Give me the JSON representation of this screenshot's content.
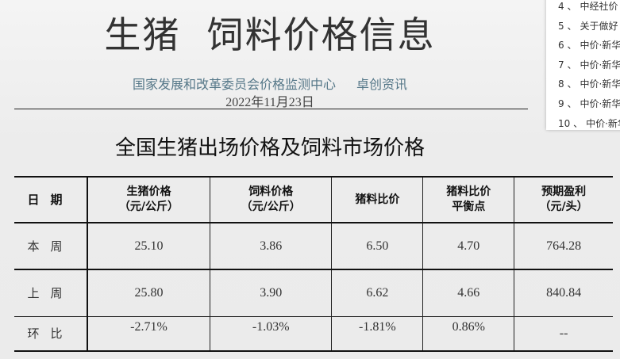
{
  "header": {
    "title": "生猪  饲料价格信息",
    "source1": "国家发展和改革委员会价格监测中心",
    "source2": "卓创资讯",
    "date": "2022年11月23日"
  },
  "heading": "全国生猪出场价格及饲料市场价格",
  "table": {
    "headers": [
      [
        "日期",
        ""
      ],
      [
        "生猪价格",
        "（元/公斤）"
      ],
      [
        "饲料价格",
        "（元/公斤）"
      ],
      [
        "猪料比价",
        ""
      ],
      [
        "猪料比价",
        "平衡点"
      ],
      [
        "预期盈利",
        "（元/头）"
      ]
    ],
    "rows": [
      [
        "本周",
        "25.10",
        "3.86",
        "6.50",
        "4.70",
        "764.28"
      ],
      [
        "上周",
        "25.80",
        "3.90",
        "6.62",
        "4.66",
        "840.84"
      ],
      [
        "环比",
        "-2.71%",
        "-1.03%",
        "-1.81%",
        "0.86%",
        "--"
      ]
    ]
  },
  "related_list": [
    {
      "num": "4 、",
      "text": "中经社价"
    },
    {
      "num": "5 、",
      "text": "关于做好"
    },
    {
      "num": "6 、",
      "text": "中价·新华"
    },
    {
      "num": "7 、",
      "text": "中价·新华"
    },
    {
      "num": "8 、",
      "text": "中价·新华"
    },
    {
      "num": "9 、",
      "text": "中价·新华"
    },
    {
      "num": "10 、",
      "text": "中价·新华"
    }
  ]
}
